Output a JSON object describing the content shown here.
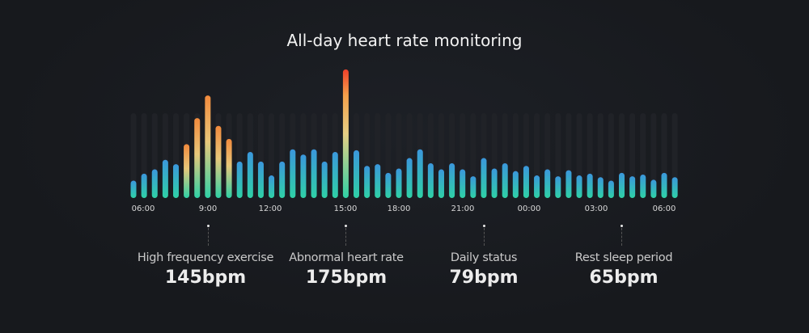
{
  "title": "All-day heart rate monitoring",
  "chart_data": {
    "type": "bar",
    "unit": "bpm",
    "values": [
      47,
      55,
      60,
      71,
      66,
      89,
      119,
      145,
      110,
      95,
      69,
      80,
      69,
      53,
      69,
      83,
      77,
      83,
      69,
      80,
      175,
      82,
      64,
      66,
      56,
      61,
      73,
      83,
      67,
      60,
      67,
      60,
      52,
      73,
      61,
      67,
      58,
      64,
      53,
      60,
      52,
      59,
      53,
      55,
      51,
      47,
      56,
      52,
      54,
      48,
      56,
      51
    ],
    "x_tick_labels": [
      "06:00",
      "9:00",
      "12:00",
      "15:00",
      "18:00",
      "21:00",
      "00:00",
      "03:00",
      "06:00"
    ],
    "colors": {
      "normal_top": "#3b97dc",
      "normal_bottom": "#2fd1a6",
      "high_mid": "#f3c46a",
      "high_top": "#f0522e",
      "track": "#202227"
    }
  },
  "annotations": [
    {
      "label": "High frequency exercise",
      "value": "145bpm"
    },
    {
      "label": "Abnormal heart rate",
      "value": "175bpm"
    },
    {
      "label": "Daily status",
      "value": "79bpm"
    },
    {
      "label": "Rest sleep period",
      "value": "65bpm"
    }
  ]
}
